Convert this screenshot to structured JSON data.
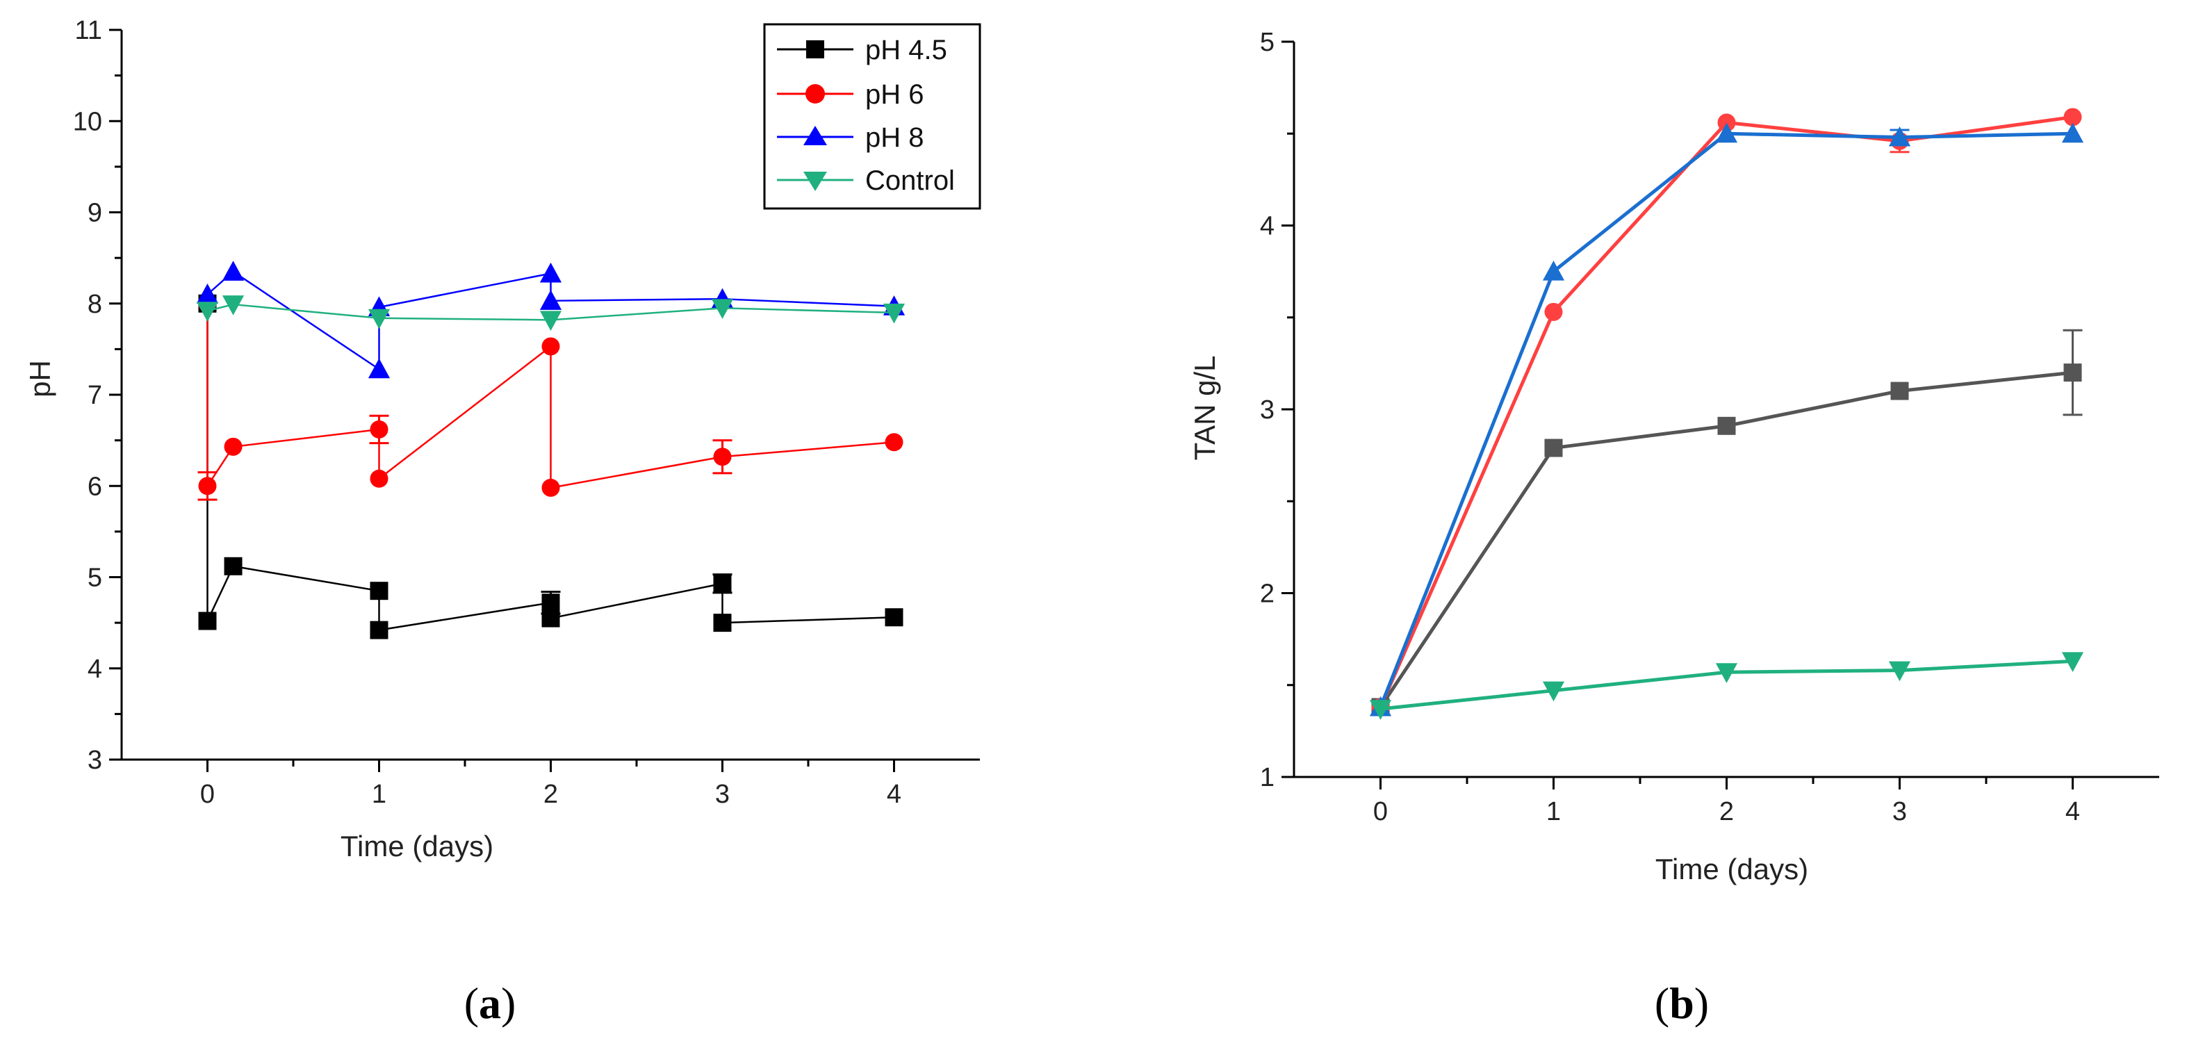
{
  "chart_data": [
    {
      "type": "line",
      "panel_label": "a",
      "xlabel": "Time (days)",
      "ylabel": "pH",
      "xlim": [
        -0.5,
        4.5
      ],
      "ylim": [
        3,
        11
      ],
      "xticks": [
        "0",
        "1",
        "2",
        "3",
        "4"
      ],
      "yticks": [
        "3",
        "4",
        "5",
        "6",
        "7",
        "8",
        "9",
        "10",
        "11"
      ],
      "legend_position": "top-right",
      "series": [
        {
          "name": "pH 4.5",
          "color": "#000000",
          "marker": "square",
          "x": [
            0,
            0,
            0.15,
            1,
            1,
            2,
            2,
            3,
            3,
            4
          ],
          "y": [
            8.0,
            4.52,
            5.12,
            4.85,
            4.42,
            4.72,
            4.55,
            4.93,
            4.5,
            4.56
          ],
          "err": [
            0,
            0,
            0,
            0,
            0,
            0.12,
            0,
            0.1,
            0,
            0
          ]
        },
        {
          "name": "pH 6",
          "color": "#ff0000",
          "marker": "circle",
          "x": [
            0,
            0,
            0.15,
            1,
            1,
            2,
            2,
            3,
            4
          ],
          "y": [
            8.0,
            6.0,
            6.43,
            6.62,
            6.08,
            7.53,
            5.98,
            6.32,
            6.48
          ],
          "err": [
            0,
            0.15,
            0,
            0.15,
            0,
            0,
            0,
            0.18,
            0
          ]
        },
        {
          "name": "pH 8",
          "color": "#0000ff",
          "marker": "triangle-up",
          "x": [
            0,
            0.15,
            1,
            1,
            2,
            2,
            3,
            4
          ],
          "y": [
            8.1,
            8.35,
            7.28,
            7.96,
            8.33,
            8.03,
            8.05,
            7.97
          ],
          "err": [
            0,
            0,
            0,
            0,
            0,
            0,
            0,
            0
          ]
        },
        {
          "name": "Control",
          "color": "#20b080",
          "marker": "triangle-down",
          "x": [
            0,
            0.15,
            1,
            2,
            3,
            4
          ],
          "y": [
            7.92,
            7.99,
            7.84,
            7.82,
            7.95,
            7.9
          ],
          "err": [
            0,
            0,
            0,
            0,
            0,
            0
          ]
        }
      ]
    },
    {
      "type": "line",
      "panel_label": "b",
      "xlabel": "Time (days)",
      "ylabel": "TAN g/L",
      "xlim": [
        -0.5,
        4.5
      ],
      "ylim": [
        1,
        5
      ],
      "xticks": [
        "0",
        "1",
        "2",
        "3",
        "4"
      ],
      "yticks": [
        "1",
        "2",
        "3",
        "4",
        "5"
      ],
      "series": [
        {
          "name": "pH 4.5",
          "color": "#555555",
          "marker": "square",
          "x": [
            0,
            1,
            2,
            3,
            4
          ],
          "y": [
            1.38,
            2.79,
            2.91,
            3.1,
            3.2
          ],
          "err": [
            0,
            0,
            0,
            0,
            0.23
          ]
        },
        {
          "name": "pH 6",
          "color": "#ff4040",
          "marker": "circle",
          "x": [
            0,
            1,
            2,
            3,
            4
          ],
          "y": [
            1.38,
            3.53,
            4.56,
            4.46,
            4.59
          ],
          "err": [
            0,
            0,
            0,
            0.06,
            0
          ]
        },
        {
          "name": "pH 8",
          "color": "#1a6fd0",
          "marker": "triangle-up",
          "x": [
            0,
            1,
            2,
            3,
            4
          ],
          "y": [
            1.38,
            3.75,
            4.5,
            4.48,
            4.5
          ],
          "err": [
            0,
            0,
            0,
            0.04,
            0
          ]
        },
        {
          "name": "Control",
          "color": "#20b080",
          "marker": "triangle-down",
          "x": [
            0,
            1,
            2,
            3,
            4
          ],
          "y": [
            1.37,
            1.47,
            1.57,
            1.58,
            1.63
          ],
          "err": [
            0,
            0,
            0,
            0,
            0
          ]
        }
      ]
    }
  ],
  "captions": {
    "a": {
      "open": "(",
      "letter": "a",
      "close": ")"
    },
    "b": {
      "open": "(",
      "letter": "b",
      "close": ")"
    }
  }
}
